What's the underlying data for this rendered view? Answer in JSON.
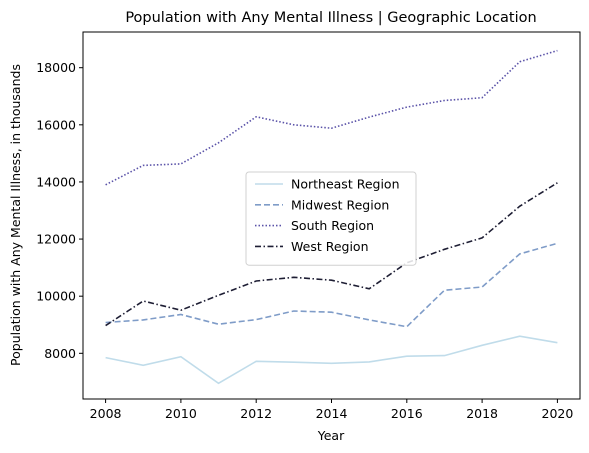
{
  "chart_data": {
    "type": "line",
    "title": "Population with Any Mental Illness | Geographic Location",
    "xlabel": "Year",
    "ylabel": "Population with Any Mental Illness, in thousands",
    "x": [
      2008,
      2009,
      2010,
      2011,
      2012,
      2013,
      2014,
      2015,
      2016,
      2017,
      2018,
      2019,
      2020
    ],
    "xticks": [
      2008,
      2010,
      2012,
      2014,
      2016,
      2018,
      2020
    ],
    "yticks": [
      8000,
      10000,
      12000,
      14000,
      16000,
      18000
    ],
    "xlim": [
      2007.4,
      2020.6
    ],
    "ylim": [
      6400,
      19250
    ],
    "grid": false,
    "legend_placement": "center",
    "series": [
      {
        "name": "Northeast Region",
        "color": "#c0dcea",
        "dash": "solid",
        "values": [
          7850,
          7580,
          7880,
          6950,
          7720,
          7690,
          7650,
          7700,
          7900,
          7920,
          8280,
          8600,
          8370
        ]
      },
      {
        "name": "Midwest Region",
        "color": "#7f9cc8",
        "dash": "dashed",
        "values": [
          9080,
          9170,
          9360,
          9020,
          9180,
          9480,
          9440,
          9170,
          8930,
          10210,
          10320,
          11480,
          11850
        ]
      },
      {
        "name": "South Region",
        "color": "#5a52a8",
        "dash": "dotted",
        "values": [
          13900,
          14580,
          14630,
          15370,
          16280,
          16000,
          15880,
          16270,
          16620,
          16850,
          16950,
          18210,
          18600
        ]
      },
      {
        "name": "West Region",
        "color": "#1e1e34",
        "dash": "dashdot",
        "values": [
          8970,
          9830,
          9510,
          10030,
          10530,
          10660,
          10560,
          10260,
          11170,
          11640,
          12040,
          13150,
          13970
        ]
      }
    ]
  }
}
